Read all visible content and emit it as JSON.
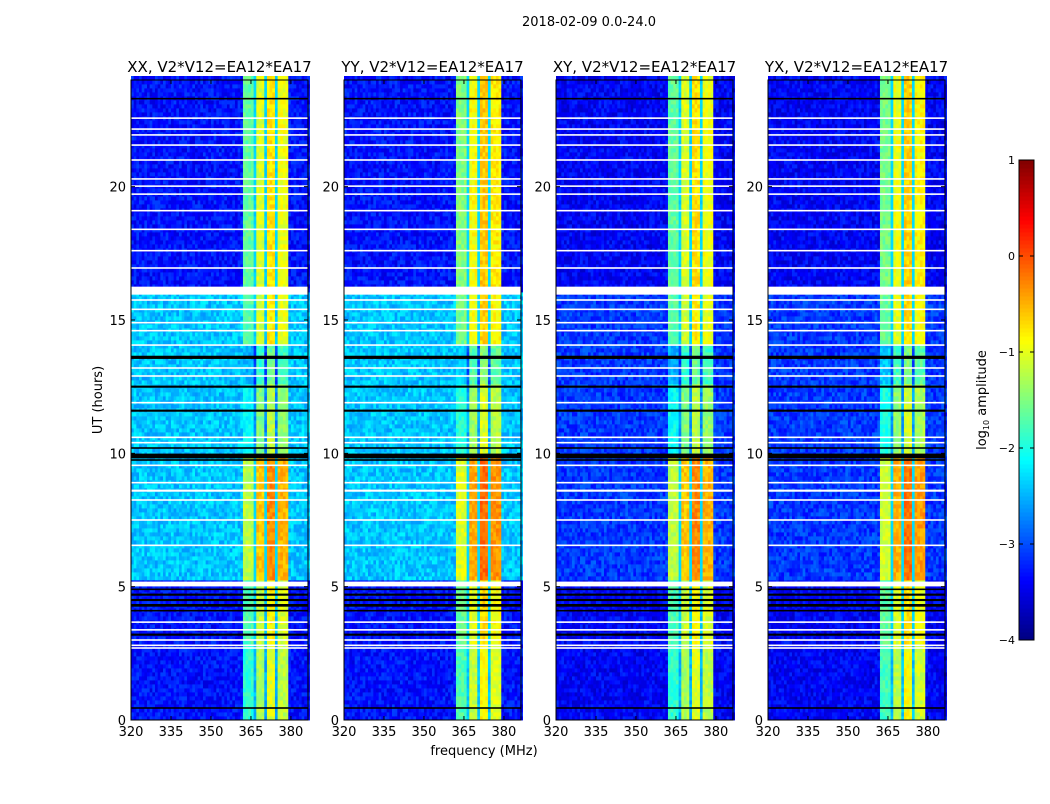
{
  "chart_data": {
    "type": "heatmap",
    "suptitle": "2018-02-09 0.0-24.0",
    "xlabel": "frequency (MHz)",
    "ylabel": "UT (hours)",
    "xlim": [
      320,
      386.4
    ],
    "ylim": [
      0,
      24
    ],
    "xticks": [
      "320",
      "335",
      "350",
      "365",
      "380"
    ],
    "yticks": [
      "0",
      "5",
      "10",
      "15",
      "20"
    ],
    "panels": [
      {
        "title": "XX, V2*V12=EA12*EA17",
        "bg_active": -2.4,
        "bg_quiet": -3.3,
        "band_gain": 0.0
      },
      {
        "title": "YY, V2*V12=EA12*EA17",
        "bg_active": -2.4,
        "bg_quiet": -3.3,
        "band_gain": 0.15
      },
      {
        "title": "XY, V2*V12=EA12*EA17",
        "bg_active": -3.1,
        "bg_quiet": -3.4,
        "band_gain": 0.0
      },
      {
        "title": "YX, V2*V12=EA12*EA17",
        "bg_active": -3.1,
        "bg_quiet": -3.4,
        "band_gain": 0.1
      }
    ],
    "freq_bands_mhz": [
      {
        "range": [
          362.5,
          366.0
        ],
        "level": -1.9
      },
      {
        "range": [
          366.0,
          367.0
        ],
        "level": -2.5
      },
      {
        "range": [
          367.0,
          370.0
        ],
        "level": -1.3
      },
      {
        "range": [
          370.0,
          371.0
        ],
        "level": -2.5
      },
      {
        "range": [
          371.0,
          374.5
        ],
        "level": -1.0
      },
      {
        "range": [
          374.5,
          375.5
        ],
        "level": -2.5
      },
      {
        "range": [
          375.5,
          379.5
        ],
        "level": -1.2
      }
    ],
    "time_segments_ut": [
      {
        "range": [
          0.0,
          2.7
        ],
        "active": false,
        "band_boost": 0.0
      },
      {
        "range": [
          2.7,
          5.0
        ],
        "active": false,
        "band_boost": 0.15
      },
      {
        "range": [
          5.2,
          9.8
        ],
        "active": true,
        "band_boost": 0.7
      },
      {
        "range": [
          9.8,
          12.5
        ],
        "active": true,
        "band_boost": -0.2
      },
      {
        "range": [
          12.5,
          14.0
        ],
        "active": true,
        "band_boost": -0.6
      },
      {
        "range": [
          14.0,
          16.0
        ],
        "active": true,
        "band_boost": 0.2
      },
      {
        "range": [
          16.2,
          24.0
        ],
        "active": false,
        "band_boost": 0.25
      }
    ],
    "flagged_ut": [
      {
        "ut": 22.57,
        "dur": 0.06
      },
      {
        "ut": 22.16,
        "dur": 0.06
      },
      {
        "ut": 21.94,
        "dur": 0.06
      },
      {
        "ut": 21.56,
        "dur": 0.06
      },
      {
        "ut": 21.0,
        "dur": 0.06
      },
      {
        "ut": 20.29,
        "dur": 0.06
      },
      {
        "ut": 20.02,
        "dur": 0.06
      },
      {
        "ut": 19.72,
        "dur": 0.06
      },
      {
        "ut": 19.1,
        "dur": 0.06
      },
      {
        "ut": 18.4,
        "dur": 0.06
      },
      {
        "ut": 17.6,
        "dur": 0.06
      },
      {
        "ut": 16.95,
        "dur": 0.06
      },
      {
        "ut": 16.1,
        "dur": 0.3
      },
      {
        "ut": 15.75,
        "dur": 0.06
      },
      {
        "ut": 15.4,
        "dur": 0.06
      },
      {
        "ut": 14.9,
        "dur": 0.06
      },
      {
        "ut": 14.6,
        "dur": 0.06
      },
      {
        "ut": 14.06,
        "dur": 0.06
      },
      {
        "ut": 13.2,
        "dur": 0.06
      },
      {
        "ut": 12.9,
        "dur": 0.06
      },
      {
        "ut": 11.9,
        "dur": 0.06
      },
      {
        "ut": 10.6,
        "dur": 0.06
      },
      {
        "ut": 10.4,
        "dur": 0.06
      },
      {
        "ut": 9.55,
        "dur": 0.06
      },
      {
        "ut": 8.9,
        "dur": 0.06
      },
      {
        "ut": 8.6,
        "dur": 0.08
      },
      {
        "ut": 8.25,
        "dur": 0.06
      },
      {
        "ut": 7.5,
        "dur": 0.06
      },
      {
        "ut": 6.55,
        "dur": 0.06
      },
      {
        "ut": 5.1,
        "dur": 0.18
      },
      {
        "ut": 3.67,
        "dur": 0.06
      },
      {
        "ut": 3.38,
        "dur": 0.06
      },
      {
        "ut": 3.0,
        "dur": 0.06
      },
      {
        "ut": 2.8,
        "dur": 0.06
      },
      {
        "ut": 2.7,
        "dur": 0.06
      }
    ],
    "dropout_ut": [
      {
        "ut": 23.3,
        "dur": 0.06
      },
      {
        "ut": 13.6,
        "dur": 0.12
      },
      {
        "ut": 12.5,
        "dur": 0.08
      },
      {
        "ut": 11.6,
        "dur": 0.08
      },
      {
        "ut": 10.2,
        "dur": 0.06
      },
      {
        "ut": 9.9,
        "dur": 0.18
      },
      {
        "ut": 9.75,
        "dur": 0.06
      },
      {
        "ut": 4.9,
        "dur": 0.06
      },
      {
        "ut": 4.7,
        "dur": 0.08
      },
      {
        "ut": 4.5,
        "dur": 0.08
      },
      {
        "ut": 4.3,
        "dur": 0.1
      },
      {
        "ut": 4.1,
        "dur": 0.06
      },
      {
        "ut": 3.2,
        "dur": 0.08
      },
      {
        "ut": 0.45,
        "dur": 0.06
      }
    ],
    "colorbar": {
      "label_main": "log",
      "label_sub": "10",
      "label_rest": " amplitude",
      "range": [
        -4,
        1
      ],
      "ticks": [
        "1",
        "0",
        "−1",
        "−2",
        "−3",
        "−4"
      ],
      "colormap": "jet"
    }
  }
}
